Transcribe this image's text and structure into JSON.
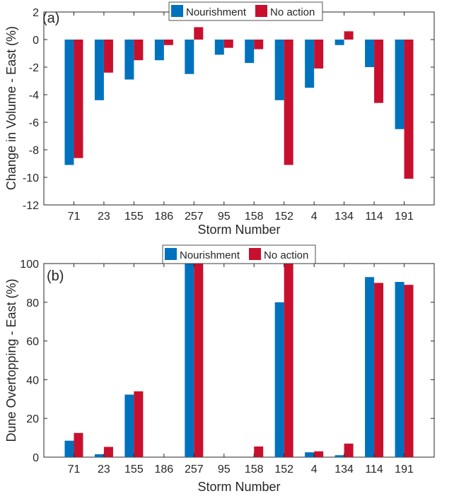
{
  "chart_data": [
    {
      "type": "bar",
      "panel_label": "(a)",
      "title": "",
      "xlabel": "Storm Number",
      "ylabel": "Change in Volume - East (%)",
      "ylim": [
        -12,
        2
      ],
      "yticks": [
        2,
        0,
        -2,
        -4,
        -6,
        -8,
        -10,
        -12
      ],
      "grid": false,
      "legend_position": "top-center",
      "categories": [
        "71",
        "23",
        "155",
        "186",
        "257",
        "95",
        "158",
        "152",
        "4",
        "134",
        "114",
        "191"
      ],
      "series": [
        {
          "name": "Nourishment",
          "color": "#0072BD",
          "values": [
            -9.1,
            -4.4,
            -2.9,
            -1.5,
            -2.5,
            -1.1,
            -1.7,
            -4.4,
            -3.5,
            -0.4,
            -2.0,
            -6.5
          ]
        },
        {
          "name": "No action",
          "color": "#C8102E",
          "values": [
            -8.6,
            -2.4,
            -1.5,
            -0.4,
            0.9,
            -0.6,
            -0.7,
            -9.1,
            -2.1,
            0.6,
            -4.6,
            -10.1
          ]
        }
      ]
    },
    {
      "type": "bar",
      "panel_label": "(b)",
      "title": "",
      "xlabel": "Storm Number",
      "ylabel": "Dune Overtopping - East (%)",
      "ylim": [
        0,
        100
      ],
      "yticks": [
        100,
        80,
        60,
        40,
        20,
        0
      ],
      "grid": false,
      "legend_position": "top-center",
      "categories": [
        "71",
        "23",
        "155",
        "186",
        "257",
        "95",
        "158",
        "152",
        "4",
        "134",
        "114",
        "191"
      ],
      "series": [
        {
          "name": "Nourishment",
          "color": "#0072BD",
          "values": [
            8.5,
            1.5,
            32.3,
            0,
            100,
            0,
            0,
            80,
            2.5,
            1.0,
            93,
            90.5
          ]
        },
        {
          "name": "No action",
          "color": "#C8102E",
          "values": [
            12.5,
            5.3,
            34.0,
            0,
            100,
            0,
            5.5,
            100,
            3.0,
            7.0,
            90,
            89
          ]
        }
      ]
    }
  ]
}
